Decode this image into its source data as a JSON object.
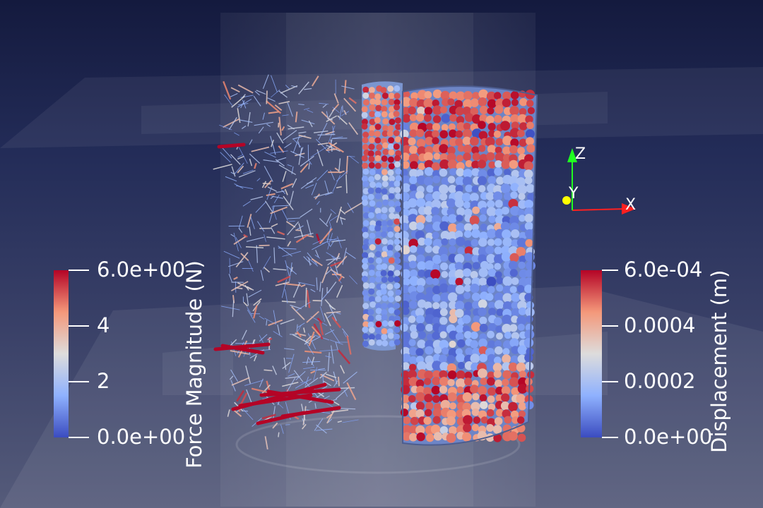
{
  "viewport": {
    "width": 1080,
    "height": 720
  },
  "colorbar_force": {
    "title": "Force Magnitude (N)",
    "ticks": [
      "6.0e+00",
      "4",
      "2",
      "0.0e+00"
    ],
    "colors": [
      "#3b4cc0",
      "#8fb1fe",
      "#dddcdc",
      "#f4987a",
      "#b40426"
    ]
  },
  "colorbar_displacement": {
    "title": "Displacement (m)",
    "ticks": [
      "6.0e-04",
      "0.0004",
      "0.0002",
      "0.0e+00"
    ],
    "colors": [
      "#3b4cc0",
      "#8fb1fe",
      "#dddcdc",
      "#f4987a",
      "#b40426"
    ]
  },
  "orientation_axes": {
    "x_label": "X",
    "y_label": "Y",
    "z_label": "Z",
    "x_color": "#ff2020",
    "y_color": "#ffff00",
    "z_color": "#20ff20"
  }
}
